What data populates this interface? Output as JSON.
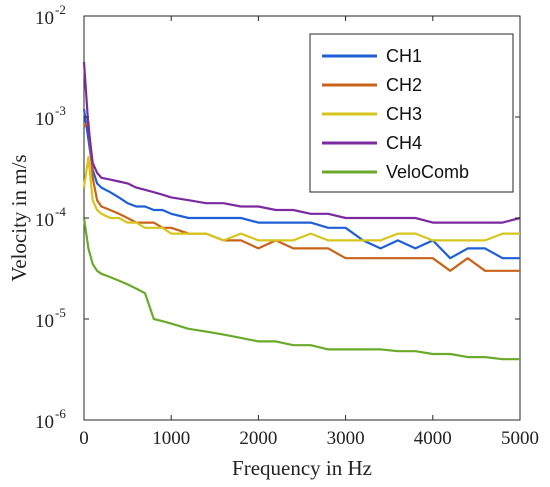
{
  "chart_data": {
    "type": "line",
    "xlabel": "Frequency in Hz",
    "ylabel": "Velocity in m/s",
    "xlim": [
      0,
      5000
    ],
    "ylim": [
      1e-06,
      0.01
    ],
    "yscale": "log",
    "x_ticks": [
      "0",
      "1000",
      "2000",
      "3000",
      "4000",
      "5000"
    ],
    "y_ticks": [
      {
        "base": "10",
        "exp": "-6"
      },
      {
        "base": "10",
        "exp": "-5"
      },
      {
        "base": "10",
        "exp": "-4"
      },
      {
        "base": "10",
        "exp": "-3"
      },
      {
        "base": "10",
        "exp": "-2"
      }
    ],
    "grid": false,
    "legend_position": "top-right",
    "x": [
      0,
      50,
      100,
      150,
      200,
      300,
      400,
      500,
      600,
      700,
      800,
      900,
      1000,
      1200,
      1400,
      1600,
      1800,
      2000,
      2200,
      2400,
      2600,
      2800,
      3000,
      3200,
      3400,
      3600,
      3800,
      4000,
      4200,
      4400,
      4600,
      4800,
      5000
    ],
    "series": [
      {
        "name": "CH1",
        "color": "#1f5fd6",
        "values": [
          0.0012,
          0.0006,
          0.0003,
          0.00022,
          0.0002,
          0.00018,
          0.00016,
          0.00014,
          0.00013,
          0.00013,
          0.00012,
          0.00012,
          0.00011,
          0.0001,
          0.0001,
          0.0001,
          0.0001,
          9e-05,
          9e-05,
          9e-05,
          9e-05,
          8e-05,
          8e-05,
          6e-05,
          5e-05,
          6e-05,
          5e-05,
          6e-05,
          4e-05,
          5e-05,
          5e-05,
          4e-05,
          4e-05
        ]
      },
      {
        "name": "CH2",
        "color": "#c8641a",
        "values": [
          0.0008,
          0.0009,
          0.00025,
          0.00015,
          0.00013,
          0.00012,
          0.00011,
          0.0001,
          9e-05,
          9e-05,
          9e-05,
          8e-05,
          8e-05,
          7e-05,
          7e-05,
          6e-05,
          6e-05,
          5e-05,
          6e-05,
          5e-05,
          5e-05,
          5e-05,
          4e-05,
          4e-05,
          4e-05,
          4e-05,
          4e-05,
          4e-05,
          3e-05,
          4e-05,
          3e-05,
          3e-05,
          3e-05
        ]
      },
      {
        "name": "CH3",
        "color": "#d7c51e",
        "values": [
          0.0002,
          0.0004,
          0.00015,
          0.00012,
          0.00011,
          0.0001,
          0.0001,
          9e-05,
          9e-05,
          8e-05,
          8e-05,
          8e-05,
          7e-05,
          7e-05,
          7e-05,
          6e-05,
          7e-05,
          6e-05,
          6e-05,
          6e-05,
          7e-05,
          6e-05,
          6e-05,
          6e-05,
          6e-05,
          7e-05,
          7e-05,
          6e-05,
          6e-05,
          6e-05,
          6e-05,
          7e-05,
          7e-05
        ]
      },
      {
        "name": "CH4",
        "color": "#7b2aa0",
        "values": [
          0.0035,
          0.0008,
          0.00035,
          0.00028,
          0.00025,
          0.00024,
          0.00023,
          0.00022,
          0.0002,
          0.00019,
          0.00018,
          0.00017,
          0.00016,
          0.00015,
          0.00014,
          0.00014,
          0.00013,
          0.00013,
          0.00012,
          0.00012,
          0.00011,
          0.00011,
          0.0001,
          0.0001,
          0.0001,
          0.0001,
          0.0001,
          9e-05,
          9e-05,
          9e-05,
          9e-05,
          9e-05,
          0.0001
        ]
      },
      {
        "name": "VeloComb",
        "color": "#6aaa2a",
        "values": [
          0.0001,
          5e-05,
          3.5e-05,
          3e-05,
          2.8e-05,
          2.6e-05,
          2.4e-05,
          2.2e-05,
          2e-05,
          1.8e-05,
          1e-05,
          9.5e-06,
          9e-06,
          8e-06,
          7.5e-06,
          7e-06,
          6.5e-06,
          6e-06,
          6e-06,
          5.5e-06,
          5.5e-06,
          5e-06,
          5e-06,
          5e-06,
          5e-06,
          4.8e-06,
          4.8e-06,
          4.5e-06,
          4.5e-06,
          4.2e-06,
          4.2e-06,
          4e-06,
          4e-06
        ]
      }
    ]
  }
}
